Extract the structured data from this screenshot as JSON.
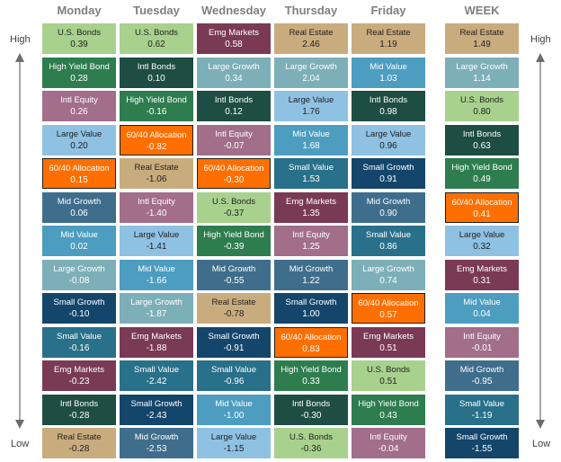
{
  "columns": [
    "Monday",
    "Tuesday",
    "Wednesday",
    "Thursday",
    "Friday",
    "WEEK"
  ],
  "side_labels": {
    "high": "High",
    "low": "Low"
  },
  "colors": {
    "U.S. Bonds": "#a9d18e",
    "High Yield Bond": "#2e7d4f",
    "Intl Equity": "#a26e8a",
    "Large Value": "#8fc1e3",
    "60/40 Allocation": "#ff6f00",
    "Mid Growth": "#3f6e8c",
    "Mid Value": "#4c9dc0",
    "Large Growth": "#7dafb8",
    "Small Growth": "#14466b",
    "Small Value": "#29708a",
    "Emg Markets": "#7a3a55",
    "Intl Bonds": "#1d4d43",
    "Real Estate": "#c9ac7e"
  },
  "chart_data": {
    "type": "table",
    "ranking": "High to Low",
    "columns": [
      {
        "name": "Monday",
        "entries": [
          {
            "asset": "U.S. Bonds",
            "value": "0.39"
          },
          {
            "asset": "High Yield Bond",
            "value": "0.28"
          },
          {
            "asset": "Intl Equity",
            "value": "0.26"
          },
          {
            "asset": "Large Value",
            "value": "0.20"
          },
          {
            "asset": "60/40 Allocation",
            "value": "0.15"
          },
          {
            "asset": "Mid Growth",
            "value": "0.06"
          },
          {
            "asset": "Mid Value",
            "value": "0.02"
          },
          {
            "asset": "Large Growth",
            "value": "-0.08"
          },
          {
            "asset": "Small Growth",
            "value": "-0.10"
          },
          {
            "asset": "Small Value",
            "value": "-0.16"
          },
          {
            "asset": "Emg Markets",
            "value": "-0.23"
          },
          {
            "asset": "Intl Bonds",
            "value": "-0.28"
          },
          {
            "asset": "Real Estate",
            "value": "-0.28"
          }
        ]
      },
      {
        "name": "Tuesday",
        "entries": [
          {
            "asset": "U.S. Bonds",
            "value": "0.62"
          },
          {
            "asset": "Intl Bonds",
            "value": "0.10"
          },
          {
            "asset": "High Yield Bond",
            "value": "-0.16"
          },
          {
            "asset": "60/40 Allocation",
            "value": "-0.82"
          },
          {
            "asset": "Real Estate",
            "value": "-1.06"
          },
          {
            "asset": "Intl Equity",
            "value": "-1.40"
          },
          {
            "asset": "Large Value",
            "value": "-1.41"
          },
          {
            "asset": "Mid Value",
            "value": "-1.66"
          },
          {
            "asset": "Large Growth",
            "value": "-1.87"
          },
          {
            "asset": "Emg Markets",
            "value": "-1.88"
          },
          {
            "asset": "Small Value",
            "value": "-2.42"
          },
          {
            "asset": "Small Growth",
            "value": "-2.43"
          },
          {
            "asset": "Mid Growth",
            "value": "-2.53"
          }
        ]
      },
      {
        "name": "Wednesday",
        "entries": [
          {
            "asset": "Emg Markets",
            "value": "0.58"
          },
          {
            "asset": "Large Growth",
            "value": "0.34"
          },
          {
            "asset": "Intl Bonds",
            "value": "0.12"
          },
          {
            "asset": "Intl Equity",
            "value": "-0.07"
          },
          {
            "asset": "60/40 Allocation",
            "value": "-0.30"
          },
          {
            "asset": "U.S. Bonds",
            "value": "-0.37"
          },
          {
            "asset": "High Yield Bond",
            "value": "-0.39"
          },
          {
            "asset": "Mid Growth",
            "value": "-0.55"
          },
          {
            "asset": "Real Estate",
            "value": "-0.78"
          },
          {
            "asset": "Small Growth",
            "value": "-0.91"
          },
          {
            "asset": "Small Value",
            "value": "-0.96"
          },
          {
            "asset": "Mid Value",
            "value": "-1.00"
          },
          {
            "asset": "Large Value",
            "value": "-1.15"
          }
        ]
      },
      {
        "name": "Thursday",
        "entries": [
          {
            "asset": "Real Estate",
            "value": "2.46"
          },
          {
            "asset": "Large Growth",
            "value": "2.04"
          },
          {
            "asset": "Large Value",
            "value": "1.76"
          },
          {
            "asset": "Mid Value",
            "value": "1.68"
          },
          {
            "asset": "Small Value",
            "value": "1.53"
          },
          {
            "asset": "Emg Markets",
            "value": "1.35"
          },
          {
            "asset": "Intl Equity",
            "value": "1.25"
          },
          {
            "asset": "Mid Growth",
            "value": "1.22"
          },
          {
            "asset": "Small Growth",
            "value": "1.00"
          },
          {
            "asset": "60/40 Allocation",
            "value": "0.83"
          },
          {
            "asset": "High Yield Bond",
            "value": "0.33"
          },
          {
            "asset": "Intl Bonds",
            "value": "-0.30"
          },
          {
            "asset": "U.S. Bonds",
            "value": "-0.36"
          }
        ]
      },
      {
        "name": "Friday",
        "entries": [
          {
            "asset": "Real Estate",
            "value": "1.19"
          },
          {
            "asset": "Mid Value",
            "value": "1.03"
          },
          {
            "asset": "Intl Bonds",
            "value": "0.98"
          },
          {
            "asset": "Large Value",
            "value": "0.96"
          },
          {
            "asset": "Small Growth",
            "value": "0.91"
          },
          {
            "asset": "Mid Growth",
            "value": "0.90"
          },
          {
            "asset": "Small Value",
            "value": "0.86"
          },
          {
            "asset": "Large Growth",
            "value": "0.74"
          },
          {
            "asset": "60/40 Allocation",
            "value": "0.57"
          },
          {
            "asset": "Emg Markets",
            "value": "0.51"
          },
          {
            "asset": "U.S. Bonds",
            "value": "0.51"
          },
          {
            "asset": "High Yield Bond",
            "value": "0.43"
          },
          {
            "asset": "Intl Equity",
            "value": "-0.04"
          }
        ]
      },
      {
        "name": "WEEK",
        "entries": [
          {
            "asset": "Real Estate",
            "value": "1.49"
          },
          {
            "asset": "Large Growth",
            "value": "1.14"
          },
          {
            "asset": "U.S. Bonds",
            "value": "0.80"
          },
          {
            "asset": "Intl Bonds",
            "value": "0.63"
          },
          {
            "asset": "High Yield Bond",
            "value": "0.49"
          },
          {
            "asset": "60/40 Allocation",
            "value": "0.41"
          },
          {
            "asset": "Large Value",
            "value": "0.32"
          },
          {
            "asset": "Emg Markets",
            "value": "0.31"
          },
          {
            "asset": "Mid Value",
            "value": "0.04"
          },
          {
            "asset": "Intl Equity",
            "value": "-0.01"
          },
          {
            "asset": "Mid Growth",
            "value": "-0.95"
          },
          {
            "asset": "Small Value",
            "value": "-1.19"
          },
          {
            "asset": "Small Growth",
            "value": "-1.55"
          }
        ]
      }
    ]
  }
}
